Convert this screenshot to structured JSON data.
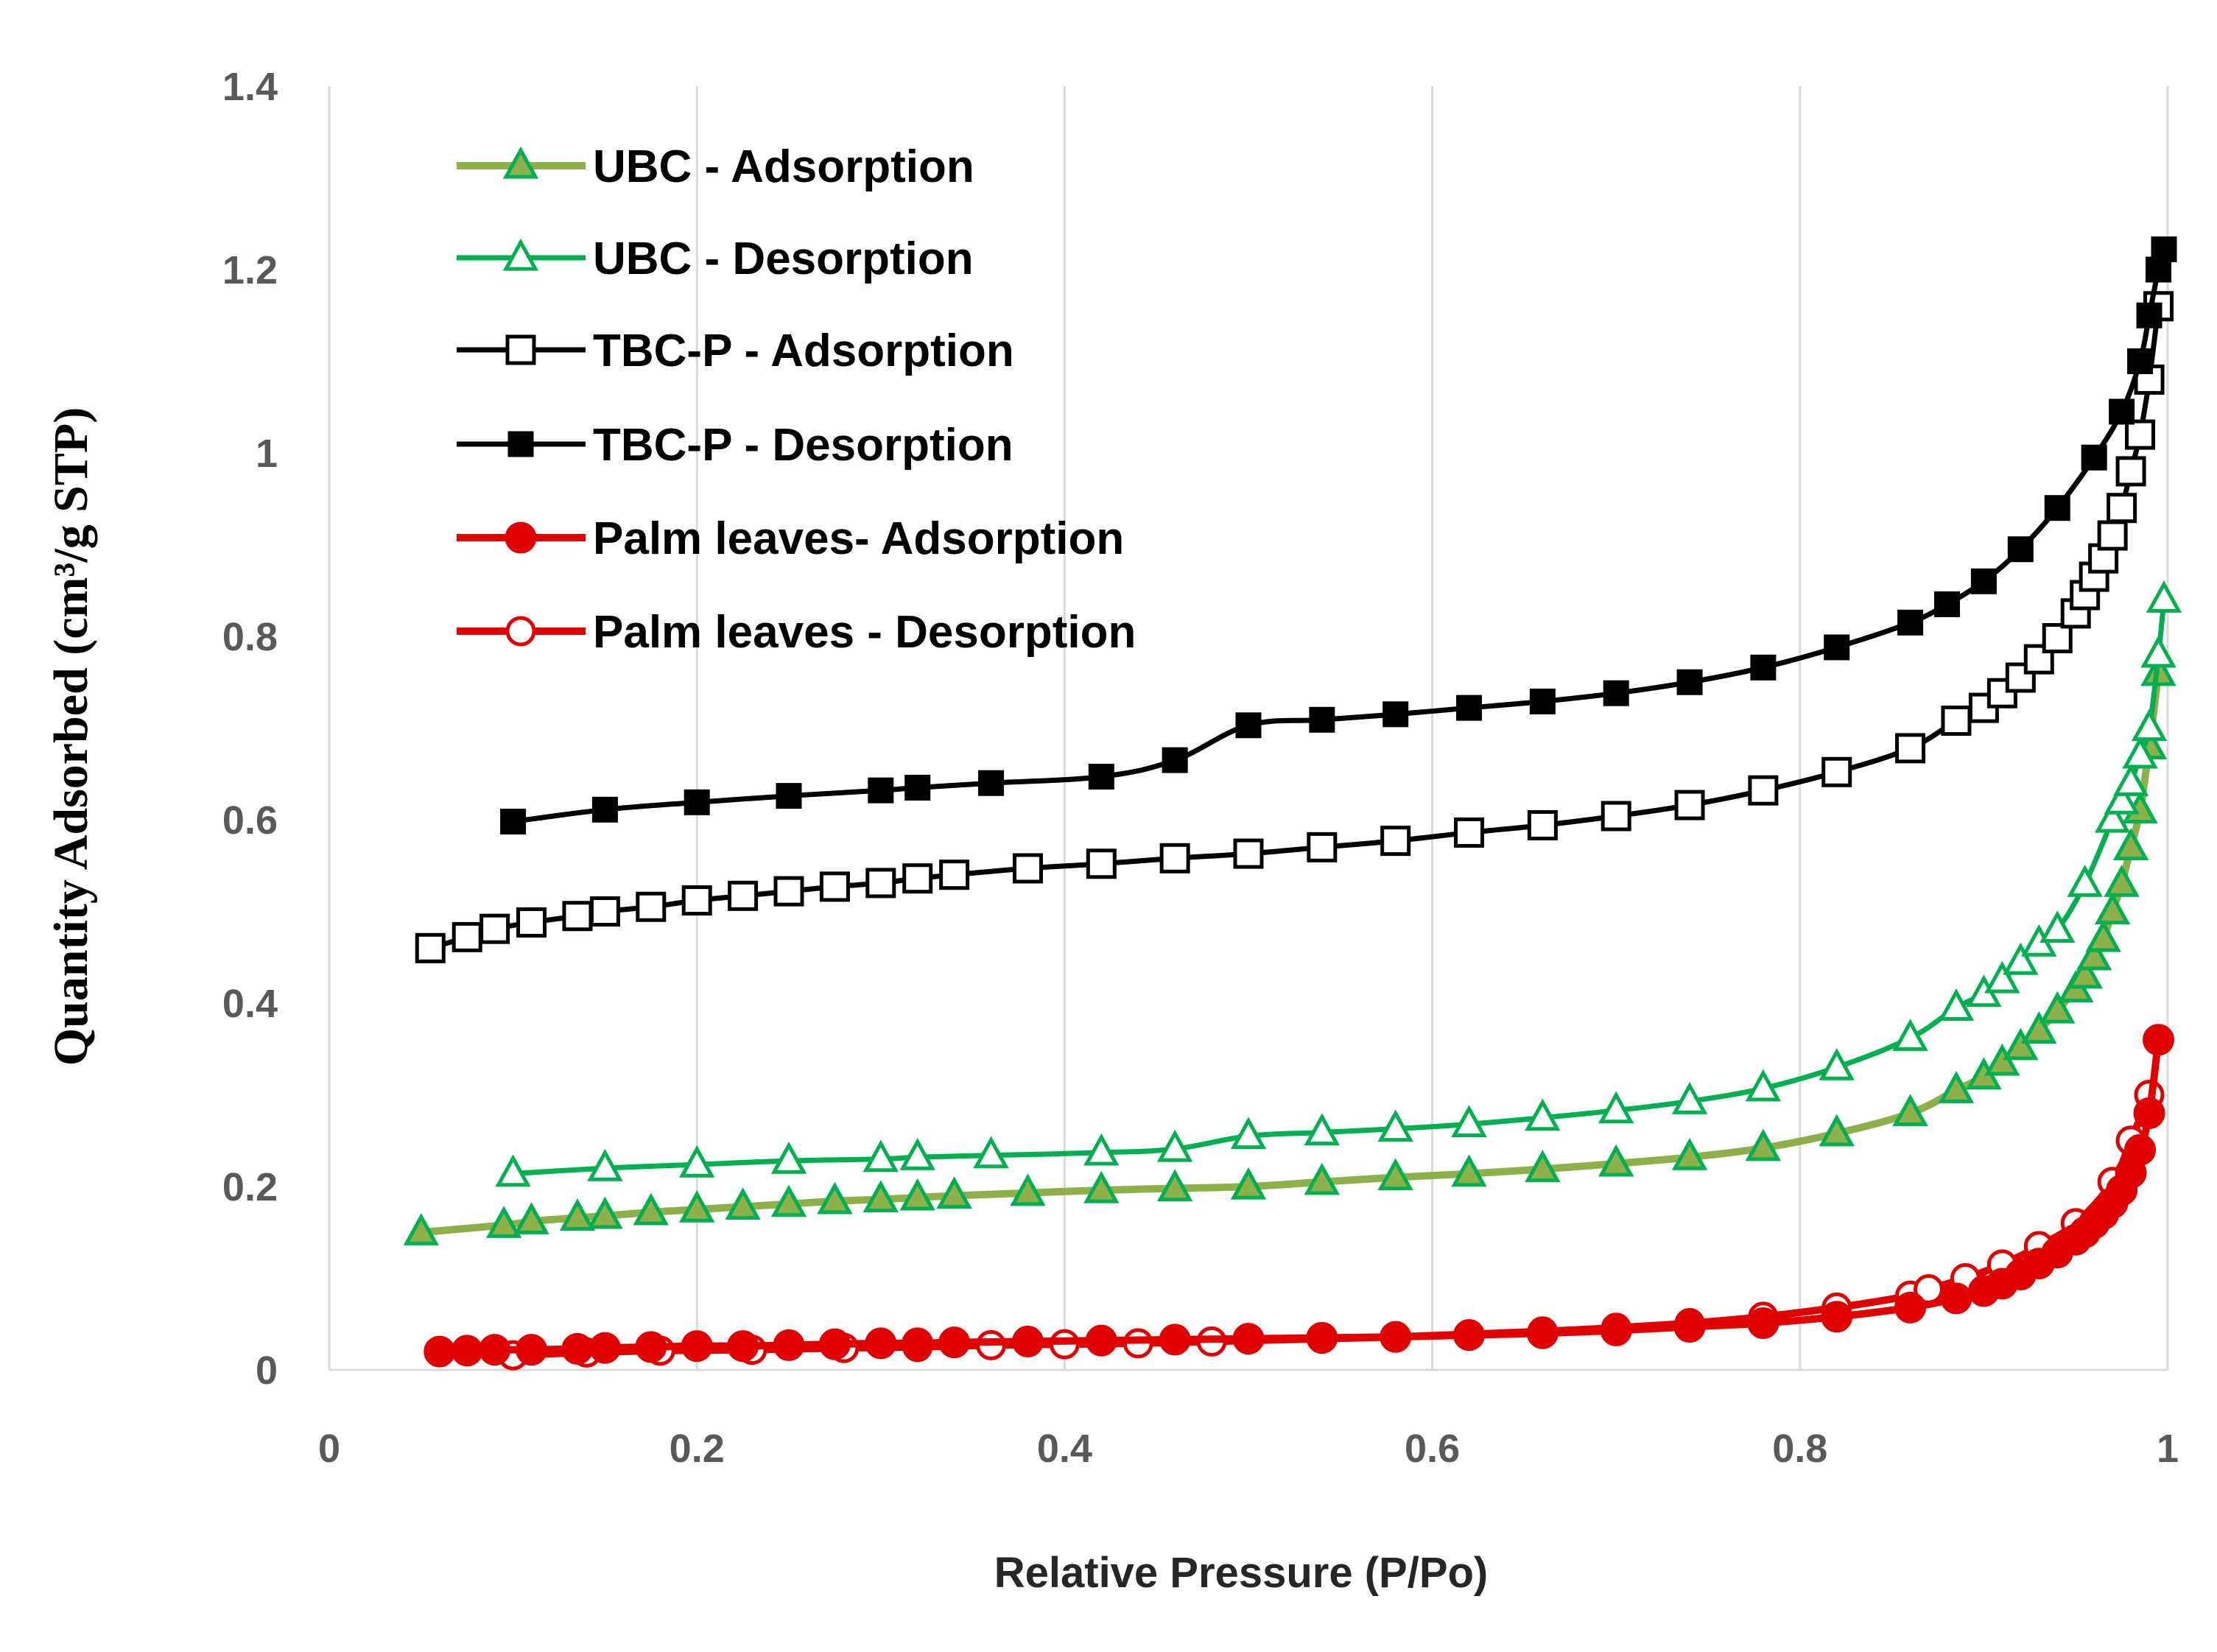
{
  "chart_data": {
    "type": "line",
    "title": "",
    "xlabel": "Relative Pressure (P/Po)",
    "ylabel": "Quantity Adsorbed (cm³/g STP)",
    "xlim": [
      0,
      1
    ],
    "ylim": [
      0,
      1.4
    ],
    "x_ticks": [
      "0",
      "0.2",
      "0.4",
      "0.6",
      "0.8",
      "1"
    ],
    "y_ticks": [
      "0",
      "0.2",
      "0.4",
      "0.6",
      "0.8",
      "1",
      "1.2",
      "1.4"
    ],
    "grid": "vertical",
    "legend_position": "top-left",
    "series": [
      {
        "name": "UBC - Adsorption",
        "line_color": "#8DB04A",
        "marker": "triangle-filled",
        "marker_color": "#00B050",
        "marker_fill": "#8DB04A",
        "x": [
          0.05,
          0.095,
          0.11,
          0.135,
          0.15,
          0.175,
          0.2,
          0.225,
          0.25,
          0.275,
          0.3,
          0.32,
          0.34,
          0.38,
          0.42,
          0.46,
          0.5,
          0.54,
          0.58,
          0.62,
          0.66,
          0.7,
          0.74,
          0.78,
          0.82,
          0.86,
          0.885,
          0.9,
          0.91,
          0.92,
          0.93,
          0.94,
          0.95,
          0.955,
          0.96,
          0.965,
          0.97,
          0.975,
          0.98,
          0.985,
          0.99,
          0.995
        ],
        "y": [
          0.15,
          0.158,
          0.162,
          0.166,
          0.168,
          0.172,
          0.175,
          0.178,
          0.181,
          0.184,
          0.186,
          0.188,
          0.19,
          0.193,
          0.196,
          0.198,
          0.2,
          0.205,
          0.21,
          0.214,
          0.219,
          0.225,
          0.232,
          0.242,
          0.258,
          0.28,
          0.305,
          0.32,
          0.335,
          0.352,
          0.37,
          0.392,
          0.415,
          0.43,
          0.45,
          0.47,
          0.5,
          0.53,
          0.57,
          0.61,
          0.68,
          0.76
        ]
      },
      {
        "name": "UBC - Desorption",
        "line_color": "#00B050",
        "marker": "triangle-open",
        "marker_color": "#00B050",
        "marker_fill": "#ffffff",
        "x": [
          0.1,
          0.15,
          0.2,
          0.25,
          0.3,
          0.32,
          0.36,
          0.42,
          0.46,
          0.5,
          0.54,
          0.58,
          0.62,
          0.66,
          0.7,
          0.74,
          0.78,
          0.82,
          0.86,
          0.885,
          0.9,
          0.91,
          0.92,
          0.93,
          0.94,
          0.955,
          0.97,
          0.975,
          0.98,
          0.985,
          0.99,
          0.995,
          0.998
        ],
        "y": [
          0.214,
          0.22,
          0.224,
          0.228,
          0.23,
          0.232,
          0.234,
          0.237,
          0.241,
          0.255,
          0.259,
          0.263,
          0.268,
          0.275,
          0.283,
          0.293,
          0.307,
          0.33,
          0.362,
          0.395,
          0.41,
          0.425,
          0.445,
          0.465,
          0.48,
          0.53,
          0.6,
          0.62,
          0.64,
          0.67,
          0.7,
          0.78,
          0.84
        ]
      },
      {
        "name": "TBC-P - Adsorption",
        "line_color": "#000000",
        "marker": "square-open",
        "marker_color": "#000000",
        "marker_fill": "#ffffff",
        "x": [
          0.055,
          0.075,
          0.09,
          0.11,
          0.135,
          0.15,
          0.175,
          0.2,
          0.225,
          0.25,
          0.275,
          0.3,
          0.32,
          0.34,
          0.38,
          0.42,
          0.46,
          0.5,
          0.54,
          0.58,
          0.62,
          0.66,
          0.7,
          0.74,
          0.78,
          0.82,
          0.86,
          0.885,
          0.9,
          0.91,
          0.92,
          0.93,
          0.94,
          0.95,
          0.955,
          0.96,
          0.965,
          0.97,
          0.975,
          0.98,
          0.985,
          0.99,
          0.995
        ],
        "y": [
          0.46,
          0.472,
          0.481,
          0.488,
          0.495,
          0.5,
          0.505,
          0.512,
          0.517,
          0.522,
          0.527,
          0.531,
          0.536,
          0.54,
          0.547,
          0.552,
          0.558,
          0.563,
          0.57,
          0.577,
          0.586,
          0.594,
          0.604,
          0.616,
          0.632,
          0.652,
          0.678,
          0.708,
          0.722,
          0.738,
          0.755,
          0.775,
          0.798,
          0.825,
          0.845,
          0.865,
          0.885,
          0.91,
          0.94,
          0.98,
          1.02,
          1.08,
          1.16
        ]
      },
      {
        "name": "TBC-P - Desorption",
        "line_color": "#000000",
        "marker": "square-filled",
        "marker_color": "#000000",
        "marker_fill": "#000000",
        "x": [
          0.1,
          0.15,
          0.2,
          0.25,
          0.3,
          0.32,
          0.36,
          0.42,
          0.46,
          0.5,
          0.54,
          0.58,
          0.62,
          0.66,
          0.7,
          0.74,
          0.78,
          0.82,
          0.86,
          0.88,
          0.9,
          0.92,
          0.94,
          0.96,
          0.975,
          0.985,
          0.99,
          0.995,
          0.998
        ],
        "y": [
          0.598,
          0.611,
          0.619,
          0.626,
          0.632,
          0.635,
          0.64,
          0.647,
          0.665,
          0.703,
          0.709,
          0.715,
          0.722,
          0.729,
          0.738,
          0.75,
          0.766,
          0.788,
          0.815,
          0.835,
          0.86,
          0.895,
          0.94,
          0.995,
          1.045,
          1.1,
          1.15,
          1.2,
          1.222
        ]
      },
      {
        "name": "Palm leaves- Adsorption",
        "line_color": "#E00000",
        "marker": "circle-filled",
        "marker_color": "#E00000",
        "marker_fill": "#E00000",
        "x": [
          0.06,
          0.075,
          0.09,
          0.11,
          0.135,
          0.15,
          0.175,
          0.2,
          0.225,
          0.25,
          0.275,
          0.3,
          0.32,
          0.34,
          0.38,
          0.42,
          0.46,
          0.5,
          0.54,
          0.58,
          0.62,
          0.66,
          0.7,
          0.74,
          0.78,
          0.82,
          0.86,
          0.885,
          0.9,
          0.91,
          0.92,
          0.93,
          0.94,
          0.95,
          0.955,
          0.96,
          0.965,
          0.97,
          0.975,
          0.98,
          0.985,
          0.99,
          0.995
        ],
        "y": [
          0.02,
          0.021,
          0.022,
          0.022,
          0.023,
          0.024,
          0.025,
          0.026,
          0.026,
          0.027,
          0.028,
          0.029,
          0.029,
          0.03,
          0.031,
          0.032,
          0.033,
          0.034,
          0.035,
          0.036,
          0.038,
          0.04,
          0.043,
          0.047,
          0.051,
          0.058,
          0.068,
          0.078,
          0.086,
          0.094,
          0.104,
          0.116,
          0.128,
          0.142,
          0.15,
          0.16,
          0.17,
          0.182,
          0.196,
          0.215,
          0.24,
          0.28,
          0.36
        ]
      },
      {
        "name": "Palm leaves - Desorption",
        "line_color": "#E00000",
        "marker": "circle-open",
        "marker_color": "#E00000",
        "marker_fill": "#ffffff",
        "x": [
          0.1,
          0.14,
          0.18,
          0.23,
          0.28,
          0.32,
          0.36,
          0.4,
          0.44,
          0.48,
          0.54,
          0.58,
          0.62,
          0.66,
          0.7,
          0.74,
          0.78,
          0.82,
          0.86,
          0.87,
          0.89,
          0.91,
          0.93,
          0.95,
          0.97,
          0.98,
          0.99
        ],
        "y": [
          0.016,
          0.019,
          0.021,
          0.022,
          0.024,
          0.025,
          0.027,
          0.028,
          0.029,
          0.031,
          0.034,
          0.036,
          0.039,
          0.042,
          0.046,
          0.051,
          0.058,
          0.068,
          0.081,
          0.088,
          0.1,
          0.115,
          0.135,
          0.16,
          0.205,
          0.25,
          0.3
        ]
      }
    ]
  }
}
